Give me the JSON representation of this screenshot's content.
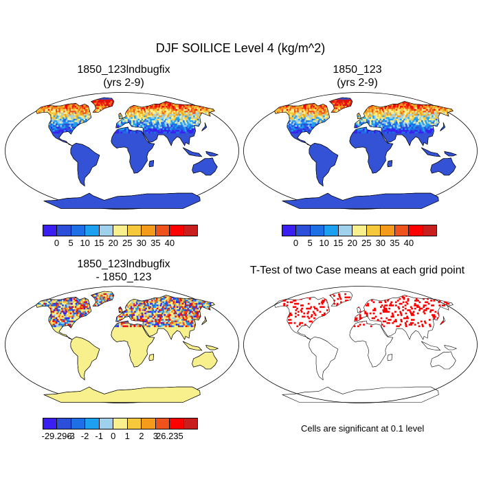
{
  "main_title": "DJF SOILICE Level 4 (kg/m^2)",
  "panels": [
    {
      "id": "case",
      "title_line1": "1850_123lndbugfix",
      "title_line2": "(yrs 2-9)"
    },
    {
      "id": "ref",
      "title_line1": "1850_123",
      "title_line2": "(yrs 2-9)"
    },
    {
      "id": "diff",
      "title_line1": "1850_123lndbugfix",
      "title_line2": "- 1850_123"
    },
    {
      "id": "ttest",
      "title_line1": "T-Test of two Case means at each grid point",
      "title_line2": ""
    }
  ],
  "colorbar_main": {
    "labels": [
      "0",
      "5",
      "10",
      "15",
      "20",
      "25",
      "30",
      "35",
      "40"
    ],
    "colors": [
      "#3b1ff2",
      "#2c4fd9",
      "#1e6fe6",
      "#1ea0f0",
      "#9fd0ec",
      "#f8f08c",
      "#f6c83c",
      "#f49b1c",
      "#f0521c",
      "#ff0000",
      "#c81e1e"
    ]
  },
  "colorbar_diff": {
    "labels": [
      "-29.296",
      "-3",
      "-2",
      "-1",
      "0",
      "1",
      "2",
      "3",
      "26.235"
    ],
    "colors": [
      "#3b1ff2",
      "#2c4fd9",
      "#1e6fe6",
      "#1ea0f0",
      "#9fd0ec",
      "#f8f08c",
      "#f6c83c",
      "#f49b1c",
      "#f0521c",
      "#ff0000",
      "#c81e1e"
    ]
  },
  "significance_note": "Cells are significant at 0.1 level",
  "colors": {
    "ocean": "#ffffff",
    "land_main": "#3352d6",
    "land_diff": "#f8f08c",
    "signif": "#ff0000"
  }
}
